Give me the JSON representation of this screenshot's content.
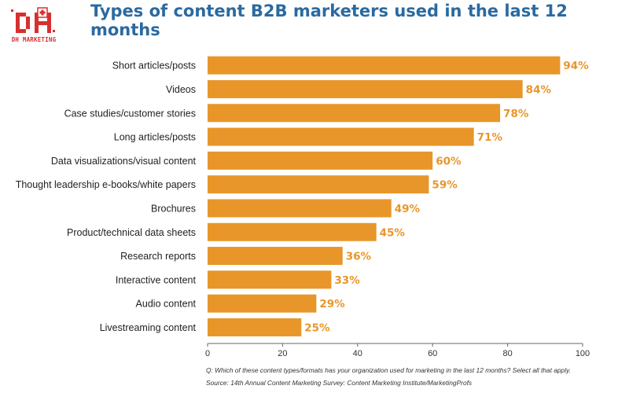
{
  "logo": {
    "caption": "DH MARKETING",
    "brand_color": "#d92f2f"
  },
  "title": "Types of content B2B marketers used in the last 12 months",
  "footnote": {
    "question": "Q: Which of these content types/formats has your organization used for marketing in the last 12 months? Select all that apply.",
    "source": "Source: 14th Annual Content Marketing Survey: Content Marketing Institute/MarketingProfs"
  },
  "chart_data": {
    "type": "bar",
    "orientation": "horizontal",
    "title": "Types of content B2B marketers used in the last 12 months",
    "xlabel": "",
    "ylabel": "",
    "xlim": [
      0,
      100
    ],
    "x_ticks": [
      0,
      20,
      40,
      60,
      80,
      100
    ],
    "grid": false,
    "bar_color": "#e8962a",
    "label_color": "#e8962a",
    "value_suffix": "%",
    "categories": [
      "Short articles/posts",
      "Videos",
      "Case studies/customer stories",
      "Long articles/posts",
      "Data visualizations/visual content",
      "Thought leadership e-books/white papers",
      "Brochures",
      "Product/technical data sheets",
      "Research reports",
      "Interactive content",
      "Audio content",
      "Livestreaming content"
    ],
    "values": [
      94,
      84,
      78,
      71,
      60,
      59,
      49,
      45,
      36,
      33,
      29,
      25
    ]
  }
}
